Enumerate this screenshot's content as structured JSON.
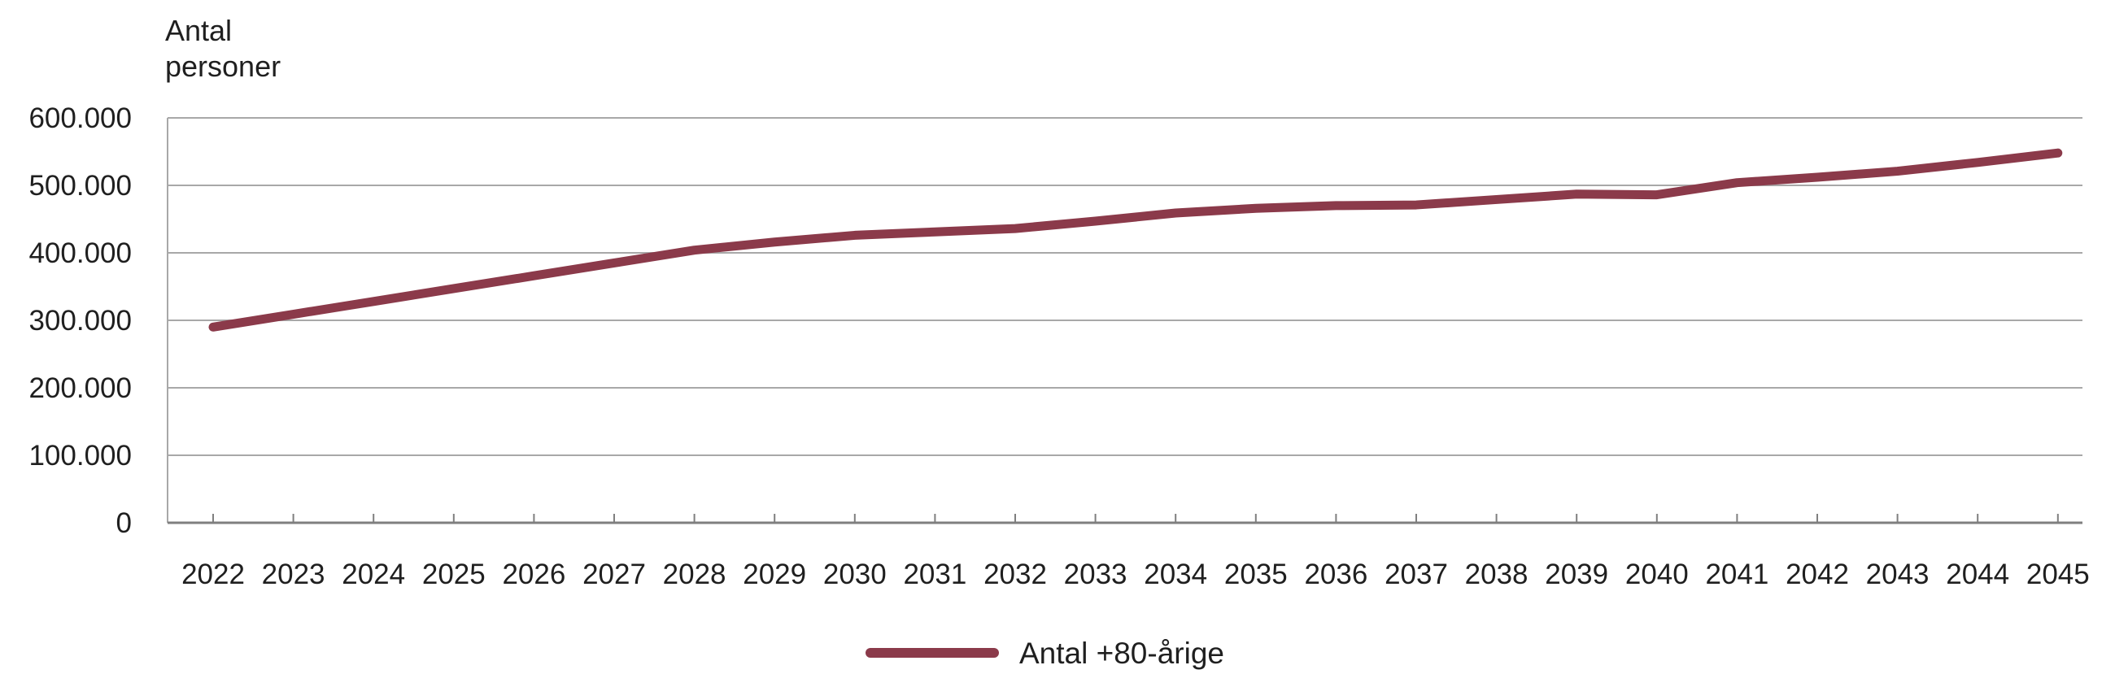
{
  "chart_data": {
    "type": "line",
    "title": "",
    "y_axis_title_lines": [
      "Antal",
      "personer"
    ],
    "xlabel": "",
    "ylabel": "Antal personer",
    "categories": [
      2022,
      2023,
      2024,
      2025,
      2026,
      2027,
      2028,
      2029,
      2030,
      2031,
      2032,
      2033,
      2034,
      2035,
      2036,
      2037,
      2038,
      2039,
      2040,
      2041,
      2042,
      2043,
      2044,
      2045
    ],
    "series": [
      {
        "name": "Antal +80-årige",
        "color": "#8B3A4A",
        "values": [
          290000,
          309000,
          328000,
          347000,
          366000,
          385000,
          404000,
          416000,
          426000,
          431000,
          436000,
          447000,
          459000,
          466000,
          470000,
          471000,
          479000,
          487000,
          486000,
          504000,
          512000,
          521000,
          534000,
          548000
        ]
      }
    ],
    "ylim": [
      0,
      600000
    ],
    "y_tick_step": 100000,
    "y_ticks": [
      0,
      100000,
      200000,
      300000,
      400000,
      500000,
      600000
    ],
    "y_tick_labels": [
      "0",
      "100.000",
      "200.000",
      "300.000",
      "400.000",
      "500.000",
      "600.000"
    ],
    "grid": "horizontal-only",
    "legend_position": "bottom-center"
  },
  "colors": {
    "series_line": "#8B3A4A",
    "gridline": "#a8a8a8",
    "axis_line": "#7f7f7f",
    "text": "#1f1f1f",
    "background": "#ffffff"
  }
}
